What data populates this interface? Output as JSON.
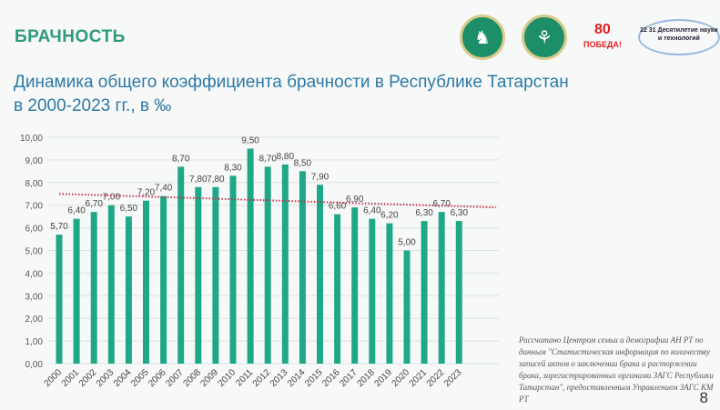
{
  "header": {
    "title": "БРАЧНОСТЬ",
    "subtitle_line1": "Динамика общего коэффициента брачности в Республике Татарстан",
    "subtitle_line2": "в 2000-2023 гг., в ‰"
  },
  "logos": [
    {
      "name": "tatarstan-emblem-logo"
    },
    {
      "name": "family-center-logo"
    },
    {
      "name": "pobeda-80-logo",
      "text": "80",
      "subtext": "ПОБЕДА!"
    },
    {
      "name": "decade-of-science-logo",
      "text": "22 31 Десятилетие науки и технологий"
    }
  ],
  "chart_data": {
    "type": "bar",
    "title": "",
    "xlabel": "",
    "ylabel": "",
    "ylim": [
      0,
      10
    ],
    "yticks": [
      "0,00",
      "1,00",
      "2,00",
      "3,00",
      "4,00",
      "5,00",
      "6,00",
      "7,00",
      "8,00",
      "9,00",
      "10,00"
    ],
    "categories": [
      "2000",
      "2001",
      "2002",
      "2003",
      "2004",
      "2005",
      "2006",
      "2007",
      "2008",
      "2009",
      "2010",
      "2011",
      "2012",
      "2013",
      "2014",
      "2015",
      "2016",
      "2017",
      "2018",
      "2019",
      "2020",
      "2021",
      "2022",
      "2023"
    ],
    "values": [
      5.7,
      6.4,
      6.7,
      7.0,
      6.5,
      7.2,
      7.4,
      8.7,
      7.8,
      7.8,
      8.3,
      9.5,
      8.7,
      8.8,
      8.5,
      7.9,
      6.6,
      6.9,
      6.4,
      6.2,
      5.0,
      6.3,
      6.7,
      6.3
    ],
    "labels": [
      "5,70",
      "6,40",
      "6,70",
      "7,00",
      "6,50",
      "7,20",
      "7,40",
      "8,70",
      "7,80",
      "7,80",
      "8,30",
      "9,50",
      "8,70",
      "8,80",
      "8,50",
      "7,90",
      "6,60",
      "6,90",
      "6,40",
      "6,20",
      "5,00",
      "6,30",
      "6,70",
      "6,30"
    ],
    "trendline": {
      "start": 7.5,
      "end": 6.9,
      "style": "dotted"
    },
    "bar_color": "#1fa888",
    "trend_color": "#c0304a",
    "grid": true
  },
  "footnote": "Рассчитано Центром семьи и демографии АН РТ по данным \"Статистическая информация по количеству записей актов о заключении брака и расторжении брака, зарегистрированных органами ЗАГС Республики Татарстан\", предоставленным Управлением ЗАГС КМ РТ",
  "page_number": "8"
}
